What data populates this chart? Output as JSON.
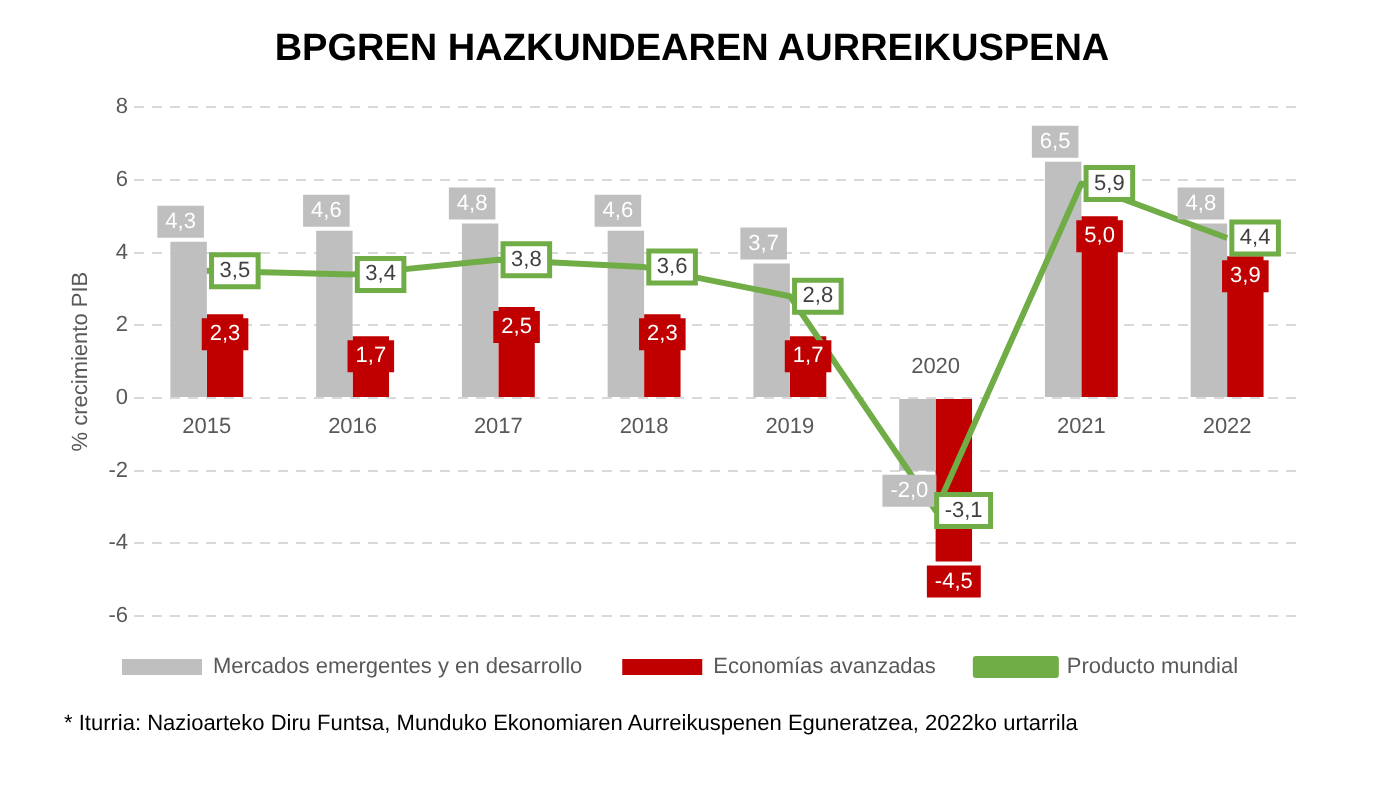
{
  "chart_data": {
    "type": "bar",
    "title": "BPGREN HAZKUNDEAREN AURREIKUSPENA",
    "ylabel": "% crecimiento PIB",
    "categories": [
      "2015",
      "2016",
      "2017",
      "2018",
      "2019",
      "2020",
      "2021",
      "2022"
    ],
    "series": [
      {
        "name": "Mercados emergentes y en desarrollo",
        "color": "#bfbfbf",
        "values": [
          4.3,
          4.6,
          4.8,
          4.6,
          3.7,
          -2.0,
          6.5,
          4.8
        ],
        "value_labels": [
          "4,3",
          "4,6",
          "4,8",
          "4,6",
          "3,7",
          "-2,0",
          "6,5",
          "4,8"
        ]
      },
      {
        "name": "Economías avanzadas",
        "color": "#c00000",
        "values": [
          2.3,
          1.7,
          2.5,
          2.3,
          1.7,
          -4.5,
          5.0,
          3.9
        ],
        "value_labels": [
          "2,3",
          "1,7",
          "2,5",
          "2,3",
          "1,7",
          "-4,5",
          "5,0",
          "3,9"
        ]
      },
      {
        "name": "Producto mundial",
        "type": "line",
        "color": "#70ad47",
        "values": [
          3.5,
          3.4,
          3.8,
          3.6,
          2.8,
          -3.1,
          5.9,
          4.4
        ],
        "value_labels": [
          "3,5",
          "3,4",
          "3,8",
          "3,6",
          "2,8",
          "-3,1",
          "5,9",
          "4,4"
        ]
      }
    ],
    "ylim": [
      -6,
      8
    ],
    "yticks": [
      -6,
      -4,
      -2,
      0,
      2,
      4,
      6,
      8
    ],
    "grid": "y",
    "legend": "bottom",
    "marker": "none",
    "line_style": "solid",
    "annotations": [
      "* Iturria: Nazioarteko Diru Funtsa, Munduko Ekonomiaren Aurreikuspenen Eguneratzea, 2022ko urtarrila"
    ]
  }
}
